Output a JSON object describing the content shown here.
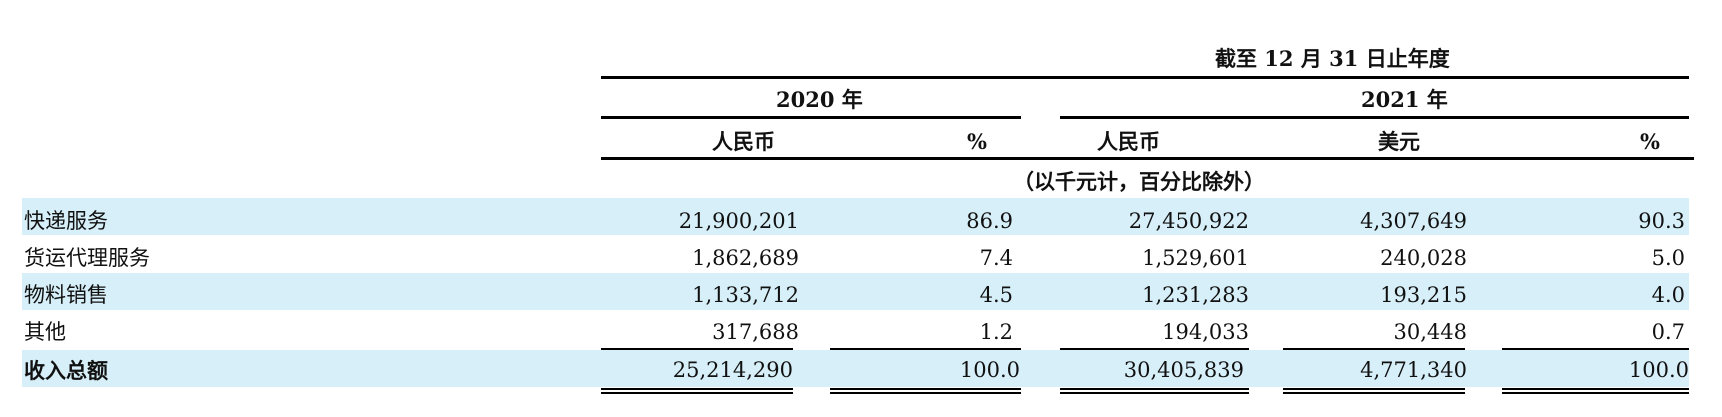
{
  "header": {
    "period": "截至 12 月 31 日止年度",
    "year_2020": "2020 年",
    "year_2021": "2021 年",
    "col_rmb_2020": "人民币",
    "col_pct_2020": "%",
    "col_rmb_2021": "人民币",
    "col_usd_2021": "美元",
    "col_pct_2021": "%",
    "unit_note": "（以千元计，百分比除外）"
  },
  "rows": [
    {
      "label": "快递服务",
      "rmb2020": "21,900,201",
      "pct2020": "86.9",
      "rmb2021": "27,450,922",
      "usd2021": "4,307,649",
      "pct2021": "90.3"
    },
    {
      "label": "货运代理服务",
      "rmb2020": "1,862,689",
      "pct2020": "7.4",
      "rmb2021": "1,529,601",
      "usd2021": "240,028",
      "pct2021": "5.0"
    },
    {
      "label": "物料销售",
      "rmb2020": "1,133,712",
      "pct2020": "4.5",
      "rmb2021": "1,231,283",
      "usd2021": "193,215",
      "pct2021": "4.0"
    },
    {
      "label": "其他",
      "rmb2020": "317,688",
      "pct2020": "1.2",
      "rmb2021": "194,033",
      "usd2021": "30,448",
      "pct2021": "0.7"
    }
  ],
  "total": {
    "label": "收入总额",
    "rmb2020": "25,214,290",
    "pct2020": "100.0",
    "rmb2021": "30,405,839",
    "usd2021": "4,771,340",
    "pct2021": "100.0"
  },
  "colors": {
    "band": "#d7eff8"
  }
}
